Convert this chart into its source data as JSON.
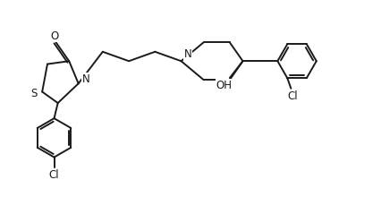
{
  "background_color": "#ffffff",
  "line_color": "#1a1a1a",
  "line_width": 1.4,
  "font_size_labels": 7.5,
  "fig_width": 4.26,
  "fig_height": 2.2,
  "dpi": 100,
  "xlim": [
    0,
    10
  ],
  "ylim": [
    0,
    5.2
  ]
}
